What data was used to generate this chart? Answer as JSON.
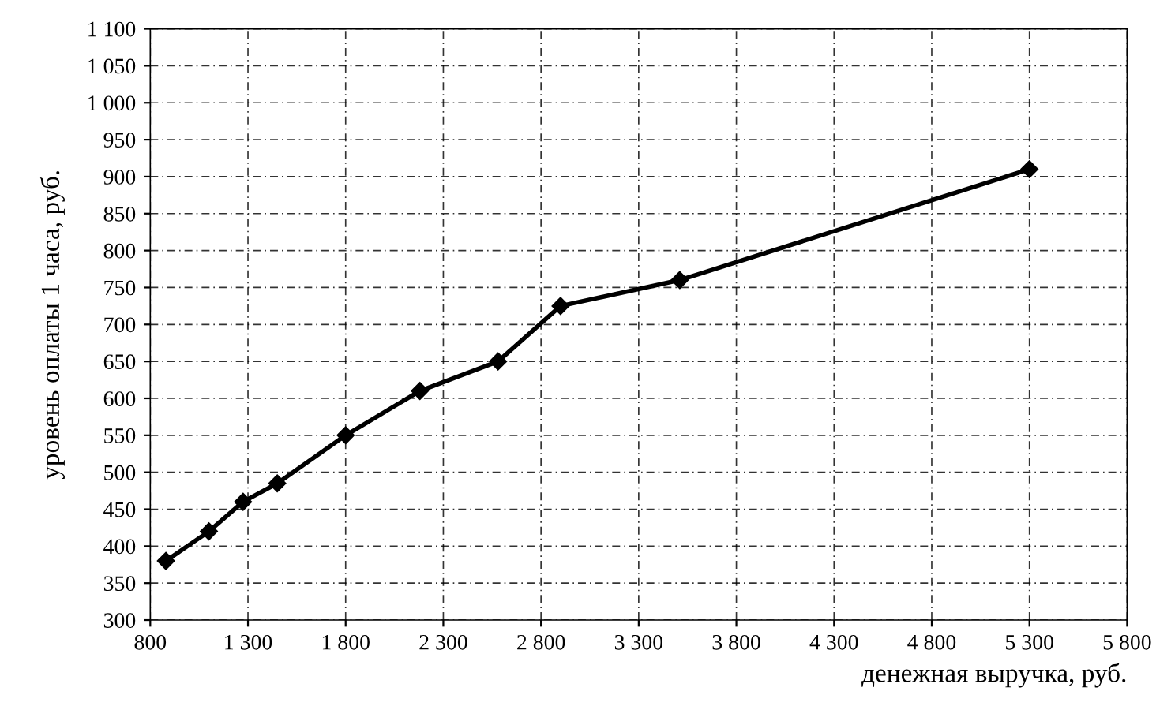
{
  "chart_data": {
    "type": "line",
    "xlabel": "денежная выручка, руб.",
    "ylabel": "уровень оплаты 1 часа, руб.",
    "x": [
      880,
      1100,
      1275,
      1450,
      1800,
      2180,
      2580,
      2900,
      3510,
      5300
    ],
    "series": [
      {
        "color": "#000000",
        "values": [
          380,
          420,
          460,
          485,
          550,
          610,
          650,
          725,
          760,
          910
        ]
      }
    ],
    "xlim": [
      800,
      5800
    ],
    "ylim": [
      300,
      1100
    ],
    "xticks": [
      800,
      {
        "value": 1300,
        "label": "1 300"
      },
      {
        "value": 1800,
        "label": "1 800"
      },
      {
        "value": 2300,
        "label": "2 300"
      },
      {
        "value": 2800,
        "label": "2 800"
      },
      {
        "value": 3300,
        "label": "3 300"
      },
      {
        "value": 3800,
        "label": "3 800"
      },
      {
        "value": 4300,
        "label": "4 300"
      },
      {
        "value": 4800,
        "label": "4 800"
      },
      {
        "value": 5300,
        "label": "5 300"
      },
      {
        "value": 5800,
        "label": "5 800"
      }
    ],
    "yticks": [
      300,
      350,
      400,
      450,
      500,
      550,
      600,
      650,
      700,
      750,
      800,
      850,
      900,
      950,
      {
        "value": 1000,
        "label": "1 000"
      },
      {
        "value": 1050,
        "label": "1 050"
      },
      {
        "value": 1100,
        "label": "1 100"
      }
    ],
    "grid": true,
    "marker": "diamond",
    "line_style": "solid"
  }
}
